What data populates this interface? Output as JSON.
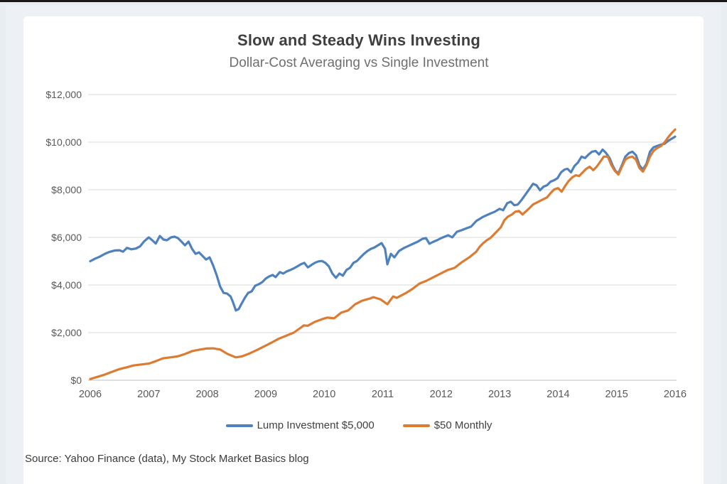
{
  "page": {
    "background": "#e8edf2",
    "top_bar_color": "#181818",
    "card_background": "#ffffff"
  },
  "chart": {
    "title": "Slow and Steady Wins Investing",
    "subtitle": "Dollar-Cost Averaging vs Single Investment",
    "source_note": "Source: Yahoo Finance (data), My Stock Market Basics blog"
  },
  "chart_data": {
    "type": "line",
    "title": "Slow and Steady Wins Investing",
    "subtitle": "Dollar-Cost Averaging vs Single Investment",
    "xlabel": "",
    "ylabel": "",
    "xlim": [
      2006,
      2016
    ],
    "ylim": [
      0,
      12000
    ],
    "grid": true,
    "legend_position": "bottom",
    "x_ticks": [
      2006,
      2007,
      2008,
      2009,
      2010,
      2011,
      2012,
      2013,
      2014,
      2015,
      2016
    ],
    "y_ticks": [
      {
        "value": 0,
        "label": "$0"
      },
      {
        "value": 2000,
        "label": "$2,000"
      },
      {
        "value": 4000,
        "label": "$4,000"
      },
      {
        "value": 6000,
        "label": "$6,000"
      },
      {
        "value": 8000,
        "label": "$8,000"
      },
      {
        "value": 10000,
        "label": "$10,000"
      },
      {
        "value": 12000,
        "label": "$12,000"
      }
    ],
    "grid_color": "#d9d9d9",
    "axis_line_color": "#c2c2c2",
    "tick_label_color": "#595959",
    "series": [
      {
        "name": "Lump Investment $5,000",
        "color": "#4f81bd",
        "points": [
          [
            2006.0,
            5000
          ],
          [
            2006.08,
            5100
          ],
          [
            2006.17,
            5200
          ],
          [
            2006.25,
            5310
          ],
          [
            2006.33,
            5390
          ],
          [
            2006.42,
            5450
          ],
          [
            2006.5,
            5460
          ],
          [
            2006.56,
            5400
          ],
          [
            2006.63,
            5560
          ],
          [
            2006.7,
            5500
          ],
          [
            2006.78,
            5530
          ],
          [
            2006.85,
            5620
          ],
          [
            2006.92,
            5830
          ],
          [
            2007.0,
            6000
          ],
          [
            2007.06,
            5880
          ],
          [
            2007.12,
            5740
          ],
          [
            2007.19,
            6060
          ],
          [
            2007.25,
            5910
          ],
          [
            2007.31,
            5880
          ],
          [
            2007.38,
            6000
          ],
          [
            2007.44,
            6030
          ],
          [
            2007.5,
            5970
          ],
          [
            2007.56,
            5820
          ],
          [
            2007.62,
            5670
          ],
          [
            2007.68,
            5820
          ],
          [
            2007.74,
            5520
          ],
          [
            2007.8,
            5310
          ],
          [
            2007.86,
            5370
          ],
          [
            2007.92,
            5220
          ],
          [
            2007.98,
            5070
          ],
          [
            2008.04,
            5160
          ],
          [
            2008.1,
            4830
          ],
          [
            2008.16,
            4420
          ],
          [
            2008.22,
            3940
          ],
          [
            2008.28,
            3670
          ],
          [
            2008.34,
            3640
          ],
          [
            2008.4,
            3520
          ],
          [
            2008.44,
            3280
          ],
          [
            2008.49,
            2930
          ],
          [
            2008.54,
            2990
          ],
          [
            2008.59,
            3230
          ],
          [
            2008.65,
            3490
          ],
          [
            2008.7,
            3670
          ],
          [
            2008.76,
            3730
          ],
          [
            2008.82,
            3970
          ],
          [
            2008.88,
            4030
          ],
          [
            2008.94,
            4120
          ],
          [
            2009.0,
            4270
          ],
          [
            2009.06,
            4360
          ],
          [
            2009.12,
            4420
          ],
          [
            2009.17,
            4330
          ],
          [
            2009.24,
            4540
          ],
          [
            2009.3,
            4480
          ],
          [
            2009.36,
            4570
          ],
          [
            2009.42,
            4630
          ],
          [
            2009.48,
            4700
          ],
          [
            2009.54,
            4780
          ],
          [
            2009.6,
            4870
          ],
          [
            2009.66,
            4930
          ],
          [
            2009.72,
            4740
          ],
          [
            2009.78,
            4840
          ],
          [
            2009.84,
            4930
          ],
          [
            2009.9,
            4990
          ],
          [
            2009.96,
            5010
          ],
          [
            2010.02,
            4930
          ],
          [
            2010.08,
            4780
          ],
          [
            2010.14,
            4480
          ],
          [
            2010.2,
            4300
          ],
          [
            2010.26,
            4480
          ],
          [
            2010.32,
            4390
          ],
          [
            2010.38,
            4630
          ],
          [
            2010.44,
            4720
          ],
          [
            2010.5,
            4930
          ],
          [
            2010.56,
            5010
          ],
          [
            2010.62,
            5160
          ],
          [
            2010.68,
            5310
          ],
          [
            2010.74,
            5430
          ],
          [
            2010.8,
            5520
          ],
          [
            2010.86,
            5580
          ],
          [
            2010.92,
            5670
          ],
          [
            2010.98,
            5760
          ],
          [
            2011.04,
            5520
          ],
          [
            2011.08,
            4870
          ],
          [
            2011.14,
            5310
          ],
          [
            2011.2,
            5160
          ],
          [
            2011.28,
            5430
          ],
          [
            2011.36,
            5550
          ],
          [
            2011.44,
            5640
          ],
          [
            2011.52,
            5730
          ],
          [
            2011.6,
            5820
          ],
          [
            2011.68,
            5940
          ],
          [
            2011.74,
            5970
          ],
          [
            2011.8,
            5730
          ],
          [
            2011.87,
            5820
          ],
          [
            2011.93,
            5880
          ],
          [
            2012.0,
            5970
          ],
          [
            2012.06,
            6030
          ],
          [
            2012.12,
            6090
          ],
          [
            2012.19,
            6000
          ],
          [
            2012.27,
            6240
          ],
          [
            2012.35,
            6300
          ],
          [
            2012.43,
            6380
          ],
          [
            2012.51,
            6450
          ],
          [
            2012.6,
            6690
          ],
          [
            2012.72,
            6870
          ],
          [
            2012.84,
            7000
          ],
          [
            2012.92,
            7080
          ],
          [
            2013.0,
            7200
          ],
          [
            2013.06,
            7140
          ],
          [
            2013.13,
            7440
          ],
          [
            2013.19,
            7500
          ],
          [
            2013.25,
            7350
          ],
          [
            2013.31,
            7380
          ],
          [
            2013.38,
            7590
          ],
          [
            2013.45,
            7830
          ],
          [
            2013.51,
            8040
          ],
          [
            2013.57,
            8250
          ],
          [
            2013.63,
            8190
          ],
          [
            2013.69,
            7980
          ],
          [
            2013.75,
            8130
          ],
          [
            2013.81,
            8190
          ],
          [
            2013.87,
            8340
          ],
          [
            2013.93,
            8400
          ],
          [
            2013.99,
            8490
          ],
          [
            2014.05,
            8730
          ],
          [
            2014.11,
            8850
          ],
          [
            2014.16,
            8880
          ],
          [
            2014.22,
            8730
          ],
          [
            2014.28,
            9000
          ],
          [
            2014.34,
            9150
          ],
          [
            2014.4,
            9390
          ],
          [
            2014.46,
            9330
          ],
          [
            2014.52,
            9480
          ],
          [
            2014.58,
            9600
          ],
          [
            2014.64,
            9630
          ],
          [
            2014.7,
            9480
          ],
          [
            2014.76,
            9690
          ],
          [
            2014.82,
            9540
          ],
          [
            2014.88,
            9330
          ],
          [
            2014.93,
            9030
          ],
          [
            2014.98,
            8790
          ],
          [
            2015.03,
            8700
          ],
          [
            2015.09,
            9030
          ],
          [
            2015.15,
            9390
          ],
          [
            2015.21,
            9540
          ],
          [
            2015.27,
            9600
          ],
          [
            2015.33,
            9450
          ],
          [
            2015.39,
            9030
          ],
          [
            2015.45,
            8850
          ],
          [
            2015.51,
            9090
          ],
          [
            2015.57,
            9600
          ],
          [
            2015.63,
            9780
          ],
          [
            2015.69,
            9840
          ],
          [
            2015.76,
            9900
          ],
          [
            2015.82,
            9930
          ],
          [
            2015.88,
            10050
          ],
          [
            2015.94,
            10140
          ],
          [
            2016.0,
            10230
          ]
        ]
      },
      {
        "name": "$50 Monthly",
        "color": "#dc7c33",
        "points": [
          [
            2006.0,
            50
          ],
          [
            2006.12,
            140
          ],
          [
            2006.24,
            230
          ],
          [
            2006.37,
            350
          ],
          [
            2006.5,
            470
          ],
          [
            2006.62,
            540
          ],
          [
            2006.74,
            620
          ],
          [
            2006.86,
            660
          ],
          [
            2007.0,
            700
          ],
          [
            2007.12,
            800
          ],
          [
            2007.24,
            920
          ],
          [
            2007.37,
            960
          ],
          [
            2007.49,
            1000
          ],
          [
            2007.62,
            1100
          ],
          [
            2007.74,
            1220
          ],
          [
            2007.86,
            1280
          ],
          [
            2007.98,
            1330
          ],
          [
            2008.1,
            1340
          ],
          [
            2008.22,
            1290
          ],
          [
            2008.35,
            1100
          ],
          [
            2008.49,
            960
          ],
          [
            2008.59,
            1000
          ],
          [
            2008.73,
            1130
          ],
          [
            2008.86,
            1280
          ],
          [
            2008.98,
            1430
          ],
          [
            2009.1,
            1580
          ],
          [
            2009.22,
            1740
          ],
          [
            2009.35,
            1870
          ],
          [
            2009.48,
            2000
          ],
          [
            2009.6,
            2210
          ],
          [
            2009.65,
            2300
          ],
          [
            2009.72,
            2290
          ],
          [
            2009.84,
            2450
          ],
          [
            2009.96,
            2560
          ],
          [
            2010.05,
            2630
          ],
          [
            2010.17,
            2600
          ],
          [
            2010.29,
            2840
          ],
          [
            2010.41,
            2930
          ],
          [
            2010.53,
            3190
          ],
          [
            2010.65,
            3340
          ],
          [
            2010.78,
            3430
          ],
          [
            2010.84,
            3490
          ],
          [
            2010.96,
            3400
          ],
          [
            2011.08,
            3190
          ],
          [
            2011.18,
            3520
          ],
          [
            2011.24,
            3460
          ],
          [
            2011.38,
            3640
          ],
          [
            2011.5,
            3820
          ],
          [
            2011.63,
            4060
          ],
          [
            2011.75,
            4180
          ],
          [
            2011.87,
            4330
          ],
          [
            2011.99,
            4480
          ],
          [
            2012.11,
            4630
          ],
          [
            2012.23,
            4720
          ],
          [
            2012.35,
            4950
          ],
          [
            2012.48,
            5160
          ],
          [
            2012.6,
            5400
          ],
          [
            2012.66,
            5610
          ],
          [
            2012.72,
            5760
          ],
          [
            2012.78,
            5880
          ],
          [
            2012.84,
            5970
          ],
          [
            2012.9,
            6120
          ],
          [
            2013.02,
            6420
          ],
          [
            2013.08,
            6720
          ],
          [
            2013.14,
            6870
          ],
          [
            2013.21,
            6960
          ],
          [
            2013.27,
            7080
          ],
          [
            2013.33,
            7110
          ],
          [
            2013.39,
            6960
          ],
          [
            2013.51,
            7230
          ],
          [
            2013.57,
            7380
          ],
          [
            2013.69,
            7530
          ],
          [
            2013.81,
            7680
          ],
          [
            2013.87,
            7860
          ],
          [
            2013.93,
            8010
          ],
          [
            2014.0,
            8070
          ],
          [
            2014.06,
            7920
          ],
          [
            2014.12,
            8160
          ],
          [
            2014.18,
            8370
          ],
          [
            2014.24,
            8520
          ],
          [
            2014.3,
            8610
          ],
          [
            2014.36,
            8580
          ],
          [
            2014.42,
            8730
          ],
          [
            2014.48,
            8880
          ],
          [
            2014.54,
            8970
          ],
          [
            2014.6,
            8820
          ],
          [
            2014.66,
            8970
          ],
          [
            2014.72,
            9180
          ],
          [
            2014.78,
            9390
          ],
          [
            2014.85,
            9390
          ],
          [
            2014.91,
            9030
          ],
          [
            2014.97,
            8790
          ],
          [
            2015.03,
            8640
          ],
          [
            2015.09,
            8970
          ],
          [
            2015.15,
            9270
          ],
          [
            2015.21,
            9360
          ],
          [
            2015.27,
            9390
          ],
          [
            2015.33,
            9270
          ],
          [
            2015.39,
            8910
          ],
          [
            2015.45,
            8760
          ],
          [
            2015.51,
            9030
          ],
          [
            2015.57,
            9390
          ],
          [
            2015.63,
            9630
          ],
          [
            2015.69,
            9750
          ],
          [
            2015.76,
            9840
          ],
          [
            2015.82,
            9990
          ],
          [
            2015.88,
            10200
          ],
          [
            2015.94,
            10380
          ],
          [
            2016.0,
            10530
          ]
        ]
      }
    ]
  }
}
